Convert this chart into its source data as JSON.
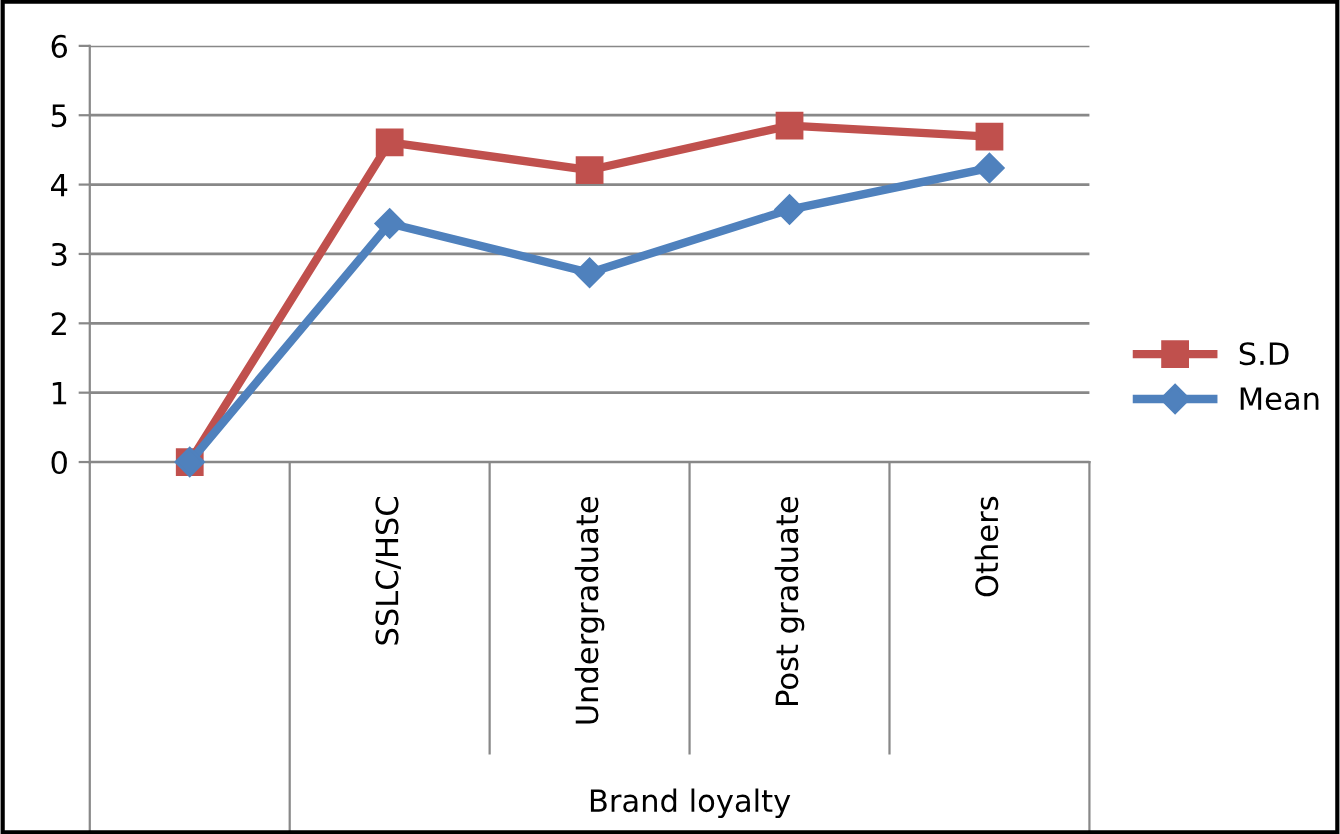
{
  "chart_data": {
    "type": "line",
    "categories": [
      null,
      "SSLC/HSC",
      "Undergraduate",
      "Post graduate",
      "Others"
    ],
    "xlabel": "Brand loyalty",
    "series": [
      {
        "name": "S.D",
        "color": "#c0504d",
        "marker": "square",
        "values": [
          0,
          4.61,
          4.21,
          4.85,
          4.69
        ]
      },
      {
        "name": "Mean",
        "color": "#4f81bd",
        "marker": "diamond",
        "values": [
          0,
          3.44,
          2.73,
          3.64,
          4.24
        ]
      }
    ],
    "ylim": [
      0,
      6
    ],
    "yticks": [
      0,
      1,
      2,
      3,
      4,
      5,
      6
    ],
    "grid": "y",
    "legend": "right"
  }
}
